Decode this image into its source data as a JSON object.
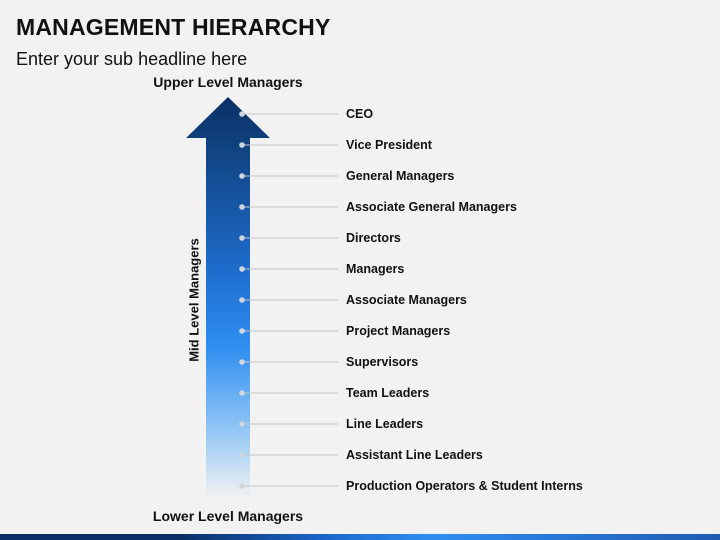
{
  "header": {
    "title": "MANAGEMENT HIERARCHY",
    "subtitle": "Enter your sub headline here"
  },
  "diagram": {
    "top_label": "Upper Level Managers",
    "mid_label": "Mid Level Managers",
    "bottom_label": "Lower Level Managers",
    "levels": [
      "CEO",
      "Vice President",
      "General Managers",
      "Associate General Managers",
      "Directors",
      "Managers",
      "Associate Managers",
      "Project Managers",
      "Supervisors",
      "Team Leaders",
      "Line Leaders",
      "Assistant Line Leaders",
      "Production Operators & Student Interns"
    ]
  },
  "colors": {
    "arrow_top": "#0b2f66",
    "arrow_mid": "#2e8ef0",
    "arrow_bottom": "#ffffff"
  }
}
